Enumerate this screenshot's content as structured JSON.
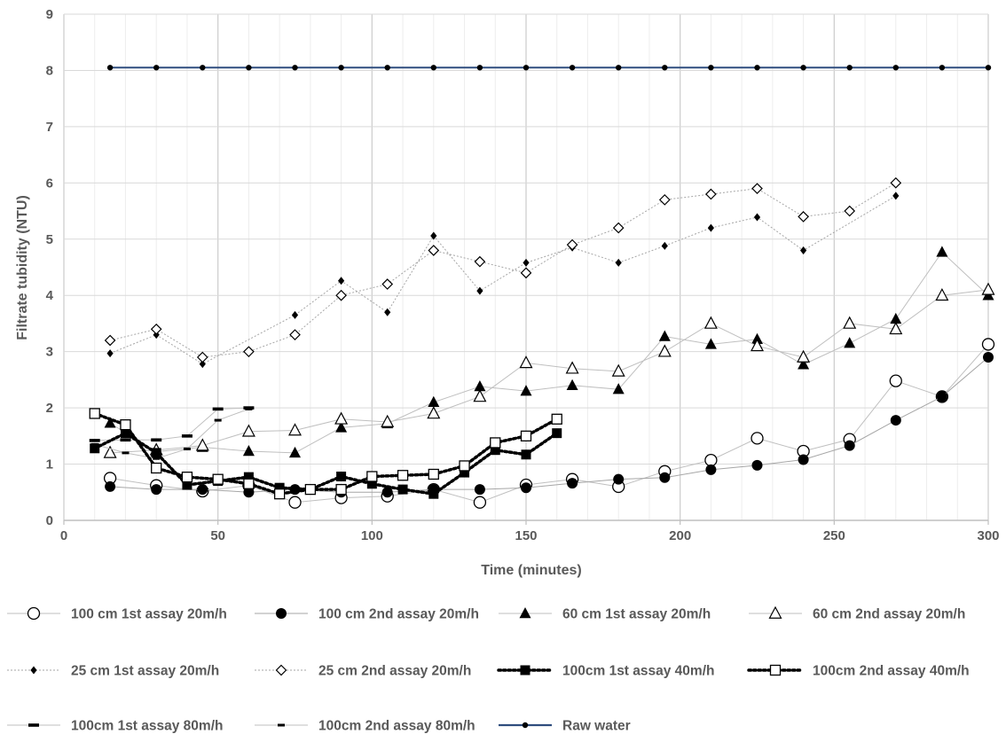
{
  "chart_data": {
    "type": "line",
    "xlabel": "Time (minutes)",
    "ylabel": "Filtrate  tubidity (NTU)",
    "xlim": [
      0,
      300
    ],
    "ylim": [
      0,
      9
    ],
    "xticks": [
      0,
      50,
      100,
      150,
      200,
      250,
      300
    ],
    "yticks": [
      0,
      1,
      2,
      3,
      4,
      5,
      6,
      7,
      8,
      9
    ],
    "grid": true,
    "legend_position": "bottom",
    "series": [
      {
        "name": "100 cm 1st assay 20m/h",
        "marker": "circle-open",
        "line": "solid",
        "color": "#bfbfbf",
        "x": [
          15,
          30,
          45,
          60,
          75,
          90,
          105,
          120,
          135,
          150,
          165,
          180,
          195,
          210,
          225,
          240,
          255,
          270,
          285,
          300
        ],
        "y": [
          0.75,
          0.62,
          0.52,
          0.62,
          0.32,
          0.4,
          0.43,
          0.55,
          0.32,
          0.63,
          0.73,
          0.6,
          0.87,
          1.07,
          1.46,
          1.23,
          1.44,
          2.48,
          2.2,
          3.13
        ]
      },
      {
        "name": "100 cm 2nd assay 20m/h",
        "marker": "circle-filled",
        "line": "solid",
        "color": "#a6a6a6",
        "x": [
          15,
          30,
          45,
          60,
          75,
          90,
          105,
          120,
          135,
          150,
          165,
          180,
          195,
          210,
          225,
          240,
          255,
          270,
          285,
          300
        ],
        "y": [
          0.6,
          0.55,
          0.55,
          0.5,
          0.55,
          0.5,
          0.5,
          0.55,
          0.55,
          0.58,
          0.66,
          0.73,
          0.76,
          0.9,
          0.98,
          1.08,
          1.33,
          1.78,
          2.2,
          2.9
        ]
      },
      {
        "name": "60 cm 1st assay 20m/h",
        "marker": "triangle-filled",
        "line": "solid",
        "color": "#bfbfbf",
        "x": [
          15,
          30,
          45,
          60,
          75,
          90,
          105,
          120,
          135,
          150,
          165,
          180,
          195,
          210,
          225,
          240,
          255,
          270,
          285,
          300
        ],
        "y": [
          1.73,
          1.22,
          1.3,
          1.23,
          1.2,
          1.65,
          1.72,
          2.1,
          2.38,
          2.3,
          2.4,
          2.33,
          3.27,
          3.13,
          3.22,
          2.77,
          3.15,
          3.58,
          4.77,
          4.0
        ]
      },
      {
        "name": "60 cm 2nd assay 20m/h",
        "marker": "triangle-open",
        "line": "solid",
        "color": "#bfbfbf",
        "x": [
          15,
          30,
          45,
          60,
          75,
          90,
          105,
          120,
          135,
          150,
          165,
          180,
          195,
          210,
          225,
          240,
          255,
          270,
          285,
          300
        ],
        "y": [
          1.2,
          1.25,
          1.33,
          1.58,
          1.6,
          1.8,
          1.75,
          1.9,
          2.2,
          2.8,
          2.7,
          2.65,
          3.0,
          3.5,
          3.1,
          2.9,
          3.5,
          3.4,
          4.0,
          4.1
        ]
      },
      {
        "name": "25 cm 1st assay 20m/h",
        "marker": "diamond-filled",
        "line": "dotted",
        "color": "#a6a6a6",
        "x": [
          15,
          30,
          45,
          75,
          90,
          105,
          120,
          135,
          150,
          165,
          180,
          195,
          210,
          225,
          240,
          270
        ],
        "y": [
          2.97,
          3.3,
          2.78,
          3.65,
          4.26,
          3.7,
          5.06,
          4.08,
          4.58,
          4.85,
          4.58,
          4.88,
          5.2,
          5.39,
          4.8,
          5.77
        ]
      },
      {
        "name": "25 cm 2nd assay 20m/h",
        "marker": "diamond-open",
        "line": "dotted",
        "color": "#a6a6a6",
        "x": [
          15,
          30,
          45,
          60,
          75,
          90,
          105,
          120,
          135,
          150,
          165,
          180,
          195,
          210,
          225,
          240,
          255,
          270
        ],
        "y": [
          3.2,
          3.4,
          2.9,
          3.0,
          3.3,
          4.0,
          4.2,
          4.8,
          4.6,
          4.4,
          4.9,
          5.2,
          5.7,
          5.8,
          5.9,
          5.4,
          5.5,
          6.0
        ]
      },
      {
        "name": "100cm 1st assay 40m/h",
        "marker": "square-filled",
        "line": "heavy-dotted",
        "color": "#000000",
        "x": [
          10,
          20,
          30,
          40,
          50,
          60,
          70,
          80,
          90,
          100,
          110,
          120,
          130,
          140,
          150,
          160
        ],
        "y": [
          1.28,
          1.55,
          1.2,
          0.63,
          0.7,
          0.77,
          0.58,
          0.55,
          0.78,
          0.65,
          0.55,
          0.47,
          0.85,
          1.25,
          1.17,
          1.55
        ]
      },
      {
        "name": "100cm 2nd assay 40m/h",
        "marker": "square-open",
        "line": "heavy-dotted",
        "color": "#000000",
        "x": [
          10,
          20,
          30,
          40,
          50,
          60,
          70,
          80,
          90,
          100,
          110,
          120,
          130,
          140,
          150,
          160
        ],
        "y": [
          1.9,
          1.7,
          0.93,
          0.77,
          0.73,
          0.65,
          0.47,
          0.55,
          0.55,
          0.78,
          0.8,
          0.82,
          0.97,
          1.38,
          1.5,
          1.8
        ]
      },
      {
        "name": "100cm 1st assay 80m/h",
        "marker": "dash",
        "line": "solid",
        "color": "#bfbfbf",
        "x": [
          10,
          20,
          30,
          40,
          50,
          60
        ],
        "y": [
          1.42,
          1.43,
          1.43,
          1.5,
          1.98,
          2.0
        ]
      },
      {
        "name": "100cm 2nd assay 80m/h",
        "marker": "dash-small",
        "line": "solid",
        "color": "#bfbfbf",
        "x": [
          10,
          20,
          30,
          40,
          50,
          60
        ],
        "y": [
          1.35,
          1.2,
          1.1,
          1.27,
          1.78,
          1.98
        ]
      },
      {
        "name": "Raw water",
        "marker": "dot-small",
        "line": "solid",
        "color": "#2f4d7e",
        "x": [
          15,
          30,
          45,
          60,
          75,
          90,
          105,
          120,
          135,
          150,
          165,
          180,
          195,
          210,
          225,
          240,
          255,
          270,
          285,
          300
        ],
        "y": [
          8.05,
          8.05,
          8.05,
          8.05,
          8.05,
          8.05,
          8.05,
          8.05,
          8.05,
          8.05,
          8.05,
          8.05,
          8.05,
          8.05,
          8.05,
          8.05,
          8.05,
          8.05,
          8.05,
          8.05
        ]
      }
    ]
  }
}
